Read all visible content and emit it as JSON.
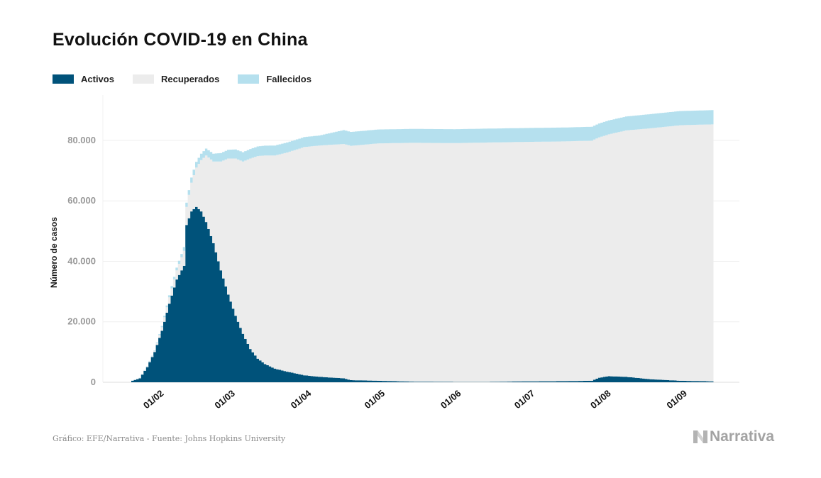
{
  "title": "Evolución COVID-19 en China",
  "legend": [
    {
      "label": "Activos",
      "color": "#00527a"
    },
    {
      "label": "Recuperados",
      "color": "#ececec"
    },
    {
      "label": "Fallecidos",
      "color": "#b5e0ee"
    }
  ],
  "source": "Gráfico: EFE/Narrativa - Fuente: Johns Hopkins University",
  "brand": {
    "name": "Narrativa",
    "icon": "narrativa-logo-icon"
  },
  "chart_data": {
    "type": "area",
    "stacked": true,
    "title": "Evolución COVID-19 en China",
    "ylabel": "Número de casos",
    "xlabel": "",
    "ylim": [
      0,
      95000
    ],
    "yticks": [
      0,
      20000,
      40000,
      60000,
      80000
    ],
    "ytick_labels": [
      "0",
      "20.000",
      "40.000",
      "60.000",
      "80.000"
    ],
    "xtick_labels": [
      "01/02",
      "01/03",
      "01/04",
      "01/05",
      "01/06",
      "01/07",
      "01/08",
      "01/09"
    ],
    "xtick_dates": [
      "2020-02-01",
      "2020-03-01",
      "2020-04-01",
      "2020-05-01",
      "2020-06-01",
      "2020-07-01",
      "2020-08-01",
      "2020-09-01"
    ],
    "x_range": [
      "2020-01-22",
      "2020-09-14"
    ],
    "grid": "horizontal",
    "legend_position": "top-left",
    "series": [
      {
        "name": "Activos",
        "color": "#00527a",
        "points": [
          [
            "2020-01-22",
            500
          ],
          [
            "2020-01-25",
            1300
          ],
          [
            "2020-01-28",
            5000
          ],
          [
            "2020-01-31",
            10000
          ],
          [
            "2020-02-03",
            17000
          ],
          [
            "2020-02-06",
            26000
          ],
          [
            "2020-02-09",
            34000
          ],
          [
            "2020-02-12",
            38500
          ],
          [
            "2020-02-13",
            52000
          ],
          [
            "2020-02-15",
            56500
          ],
          [
            "2020-02-17",
            58000
          ],
          [
            "2020-02-19",
            56500
          ],
          [
            "2020-02-21",
            53000
          ],
          [
            "2020-02-24",
            46000
          ],
          [
            "2020-02-27",
            37000
          ],
          [
            "2020-03-01",
            29000
          ],
          [
            "2020-03-04",
            22000
          ],
          [
            "2020-03-07",
            16000
          ],
          [
            "2020-03-10",
            11000
          ],
          [
            "2020-03-13",
            7800
          ],
          [
            "2020-03-16",
            6000
          ],
          [
            "2020-03-20",
            4500
          ],
          [
            "2020-03-25",
            3500
          ],
          [
            "2020-04-01",
            2300
          ],
          [
            "2020-04-07",
            1800
          ],
          [
            "2020-04-17",
            1300
          ],
          [
            "2020-04-20",
            700
          ],
          [
            "2020-05-01",
            500
          ],
          [
            "2020-05-15",
            200
          ],
          [
            "2020-06-01",
            100
          ],
          [
            "2020-06-15",
            100
          ],
          [
            "2020-07-01",
            300
          ],
          [
            "2020-07-15",
            350
          ],
          [
            "2020-07-27",
            500
          ],
          [
            "2020-07-30",
            1500
          ],
          [
            "2020-08-03",
            2000
          ],
          [
            "2020-08-10",
            1800
          ],
          [
            "2020-08-20",
            1000
          ],
          [
            "2020-09-01",
            500
          ],
          [
            "2020-09-14",
            300
          ]
        ]
      },
      {
        "name": "Recuperados",
        "color": "#ececec",
        "points": [
          [
            "2020-01-22",
            0
          ],
          [
            "2020-01-31",
            300
          ],
          [
            "2020-02-09",
            3000
          ],
          [
            "2020-02-12",
            5000
          ],
          [
            "2020-02-13",
            6000
          ],
          [
            "2020-02-15",
            9500
          ],
          [
            "2020-02-17",
            13000
          ],
          [
            "2020-02-19",
            17000
          ],
          [
            "2020-02-21",
            22000
          ],
          [
            "2020-02-24",
            27000
          ],
          [
            "2020-02-27",
            36000
          ],
          [
            "2020-03-01",
            45000
          ],
          [
            "2020-03-04",
            52000
          ],
          [
            "2020-03-07",
            57000
          ],
          [
            "2020-03-10",
            63000
          ],
          [
            "2020-03-13",
            67000
          ],
          [
            "2020-03-16",
            69000
          ],
          [
            "2020-03-20",
            70500
          ],
          [
            "2020-03-25",
            72500
          ],
          [
            "2020-04-01",
            75500
          ],
          [
            "2020-04-07",
            76500
          ],
          [
            "2020-04-17",
            77500
          ],
          [
            "2020-04-20",
            77500
          ],
          [
            "2020-05-01",
            78500
          ],
          [
            "2020-05-15",
            79000
          ],
          [
            "2020-06-01",
            79000
          ],
          [
            "2020-06-15",
            79200
          ],
          [
            "2020-07-01",
            79200
          ],
          [
            "2020-07-15",
            79300
          ],
          [
            "2020-07-27",
            79400
          ],
          [
            "2020-07-30",
            79500
          ],
          [
            "2020-08-03",
            80000
          ],
          [
            "2020-08-10",
            81500
          ],
          [
            "2020-08-20",
            83000
          ],
          [
            "2020-09-01",
            84500
          ],
          [
            "2020-09-14",
            85000
          ]
        ]
      },
      {
        "name": "Fallecidos",
        "color": "#b5e0ee",
        "points": [
          [
            "2020-01-22",
            20
          ],
          [
            "2020-01-31",
            200
          ],
          [
            "2020-02-09",
            900
          ],
          [
            "2020-02-12",
            1200
          ],
          [
            "2020-02-13",
            1400
          ],
          [
            "2020-02-15",
            1700
          ],
          [
            "2020-02-17",
            1900
          ],
          [
            "2020-02-19",
            2100
          ],
          [
            "2020-02-21",
            2300
          ],
          [
            "2020-02-24",
            2600
          ],
          [
            "2020-02-27",
            2800
          ],
          [
            "2020-03-01",
            2900
          ],
          [
            "2020-03-04",
            3000
          ],
          [
            "2020-03-07",
            3100
          ],
          [
            "2020-03-10",
            3150
          ],
          [
            "2020-03-13",
            3200
          ],
          [
            "2020-03-16",
            3250
          ],
          [
            "2020-03-20",
            3300
          ],
          [
            "2020-03-25",
            3300
          ],
          [
            "2020-04-01",
            3300
          ],
          [
            "2020-04-07",
            3300
          ],
          [
            "2020-04-17",
            4600
          ],
          [
            "2020-04-20",
            4600
          ],
          [
            "2020-05-01",
            4600
          ],
          [
            "2020-05-15",
            4600
          ],
          [
            "2020-06-01",
            4600
          ],
          [
            "2020-06-15",
            4600
          ],
          [
            "2020-07-01",
            4600
          ],
          [
            "2020-07-15",
            4600
          ],
          [
            "2020-07-27",
            4600
          ],
          [
            "2020-07-30",
            4600
          ],
          [
            "2020-08-03",
            4600
          ],
          [
            "2020-08-10",
            4600
          ],
          [
            "2020-08-20",
            4700
          ],
          [
            "2020-09-01",
            4700
          ],
          [
            "2020-09-14",
            4700
          ]
        ]
      }
    ]
  }
}
